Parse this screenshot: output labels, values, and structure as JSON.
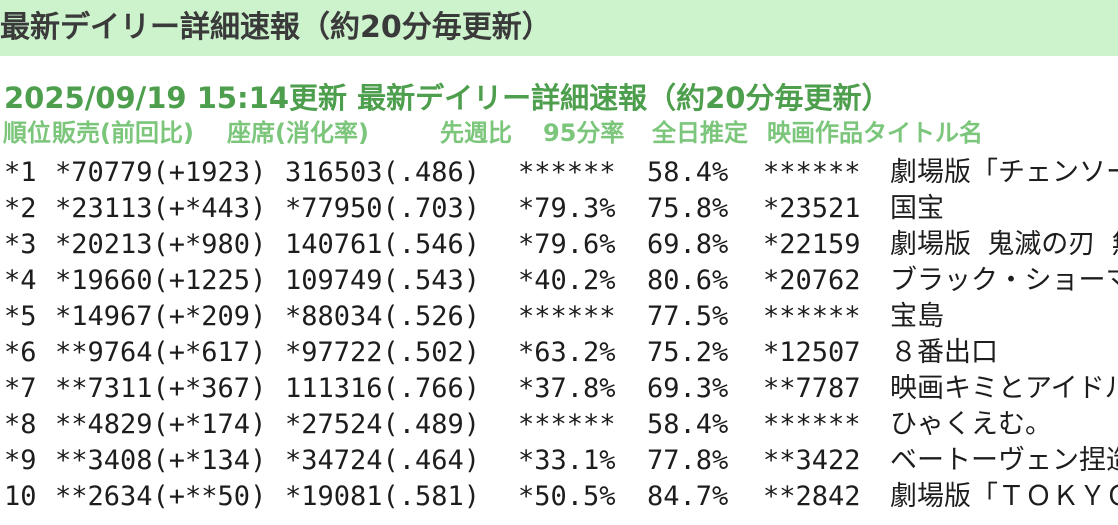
{
  "title_bar": {
    "text": "最新デイリー詳細速報（約20分毎更新）"
  },
  "report": {
    "updated_line": "2025/09/19 15:14更新 最新デイリー詳細速報（約20分毎更新）",
    "columns": [
      {
        "id": "rank",
        "label": "順位"
      },
      {
        "id": "sales",
        "label": "販売(前回比)"
      },
      {
        "id": "seats",
        "label": "座席(消化率)"
      },
      {
        "id": "week",
        "label": "先週比"
      },
      {
        "id": "rate95",
        "label": "95分率"
      },
      {
        "id": "estimate",
        "label": "全日推定"
      },
      {
        "id": "title",
        "label": "映画作品タイトル名"
      }
    ],
    "rows": [
      {
        "rank": "*1",
        "sales": "*70779(+1923)",
        "seats": "316503(.486)",
        "week": "******",
        "rate95": "58.4%",
        "estimate": "******",
        "title": "劇場版「チェンソーマ"
      },
      {
        "rank": "*2",
        "sales": "*23113(+*443)",
        "seats": "*77950(.703)",
        "week": "*79.3%",
        "rate95": "75.8%",
        "estimate": "*23521",
        "title": "国宝"
      },
      {
        "rank": "*3",
        "sales": "*20213(+*980)",
        "seats": "140761(.546)",
        "week": "*79.6%",
        "rate95": "69.8%",
        "estimate": "*22159",
        "title": "劇場版 鬼滅の刃 無限"
      },
      {
        "rank": "*4",
        "sales": "*19660(+1225)",
        "seats": "109749(.543)",
        "week": "*40.2%",
        "rate95": "80.6%",
        "estimate": "*20762",
        "title": "ブラック・ショーマ"
      },
      {
        "rank": "*5",
        "sales": "*14967(+*209)",
        "seats": "*88034(.526)",
        "week": "******",
        "rate95": "77.5%",
        "estimate": "******",
        "title": "宝島"
      },
      {
        "rank": "*6",
        "sales": "**9764(+*617)",
        "seats": "*97722(.502)",
        "week": "*63.2%",
        "rate95": "75.2%",
        "estimate": "*12507",
        "title": "８番出口"
      },
      {
        "rank": "*7",
        "sales": "**7311(+*367)",
        "seats": "111316(.766)",
        "week": "*37.8%",
        "rate95": "69.3%",
        "estimate": "**7787",
        "title": "映画キミとアイドルプ"
      },
      {
        "rank": "*8",
        "sales": "**4829(+*174)",
        "seats": "*27524(.489)",
        "week": "******",
        "rate95": "58.4%",
        "estimate": "******",
        "title": "ひゃくえむ。"
      },
      {
        "rank": "*9",
        "sales": "**3408(+*134)",
        "seats": "*34724(.464)",
        "week": "*33.1%",
        "rate95": "77.8%",
        "estimate": "**3422",
        "title": "ベートーヴェン捏造"
      },
      {
        "rank": "10",
        "sales": "**2634(+**50)",
        "seats": "*19081(.581)",
        "week": "*50.5%",
        "rate95": "84.7%",
        "estimate": "**2842",
        "title": "劇場版「ＴＯＫＹＯ"
      }
    ]
  },
  "colors": {
    "title_bar_bg": "#cdf3cd",
    "title_bar_text": "#3a3a3a",
    "updated_text_green": "#4d9e4d",
    "column_header_green": "#7cc67c",
    "data_text": "#1d1d1d",
    "page_bg": "#ffffff"
  }
}
